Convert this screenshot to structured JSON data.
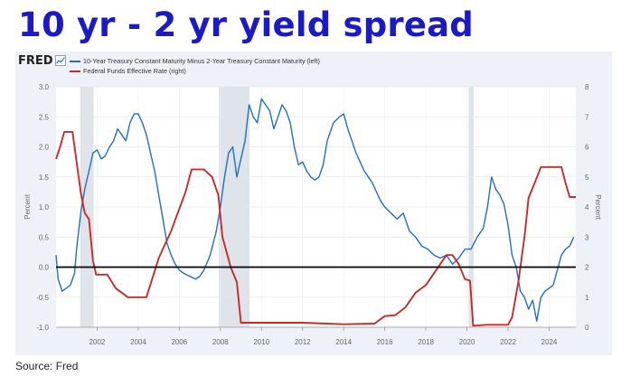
{
  "slide": {
    "title": "10 yr - 2 yr yield spread",
    "source": "Source: Fred"
  },
  "brand": {
    "logo_text": "FRED",
    "accent": "#1a1acc"
  },
  "chart_data": {
    "type": "line",
    "title": "",
    "xlabel": "",
    "ylabel": "Percent",
    "ylabel_right": "Percent",
    "xlim": [
      2000.0,
      2025.3
    ],
    "ylim": [
      -1.0,
      3.0
    ],
    "ylim_right": [
      0,
      8
    ],
    "x_ticks": [
      "2002",
      "2004",
      "2006",
      "2008",
      "2010",
      "2012",
      "2014",
      "2016",
      "2018",
      "2020",
      "2022",
      "2024"
    ],
    "y_ticks": [
      "3.0",
      "2.5",
      "2.0",
      "1.5",
      "1.0",
      "0.5",
      "0.0",
      "-0.5",
      "-1.0"
    ],
    "y_ticks_right": [
      "8",
      "7",
      "6",
      "5",
      "4",
      "3",
      "2",
      "1",
      "0"
    ],
    "grid": true,
    "legend_position": "top-left",
    "zero_line": 0.0,
    "recessions": [
      [
        2001.17,
        2001.83
      ],
      [
        2007.92,
        2009.42
      ],
      [
        2020.08,
        2020.33
      ]
    ],
    "series": [
      {
        "name": "10-Year Treasury Constant Maturity Minus 2-Year Treasury Constant Maturity (left)",
        "axis": "left",
        "color": "#1f6fc7",
        "x": [
          2000.0,
          2000.1,
          2000.3,
          2000.5,
          2000.7,
          2000.9,
          2001.0,
          2001.2,
          2001.4,
          2001.6,
          2001.8,
          2002.0,
          2002.2,
          2002.4,
          2002.6,
          2002.8,
          2003.0,
          2003.2,
          2003.4,
          2003.6,
          2003.8,
          2004.0,
          2004.2,
          2004.4,
          2004.6,
          2004.8,
          2005.0,
          2005.2,
          2005.4,
          2005.6,
          2005.8,
          2006.0,
          2006.2,
          2006.5,
          2006.8,
          2007.0,
          2007.2,
          2007.5,
          2007.8,
          2008.0,
          2008.2,
          2008.4,
          2008.6,
          2008.8,
          2009.0,
          2009.2,
          2009.4,
          2009.6,
          2009.8,
          2010.0,
          2010.2,
          2010.4,
          2010.6,
          2010.8,
          2011.0,
          2011.2,
          2011.4,
          2011.6,
          2011.8,
          2012.0,
          2012.2,
          2012.4,
          2012.6,
          2012.8,
          2013.0,
          2013.2,
          2013.5,
          2013.8,
          2014.0,
          2014.2,
          2014.4,
          2014.6,
          2014.8,
          2015.0,
          2015.2,
          2015.4,
          2015.6,
          2015.8,
          2016.0,
          2016.3,
          2016.6,
          2016.9,
          2017.2,
          2017.5,
          2017.8,
          2018.1,
          2018.4,
          2018.7,
          2019.0,
          2019.3,
          2019.6,
          2019.9,
          2020.2,
          2020.5,
          2020.8,
          2021.0,
          2021.2,
          2021.4,
          2021.6,
          2021.8,
          2022.0,
          2022.2,
          2022.4,
          2022.6,
          2022.8,
          2023.0,
          2023.2,
          2023.4,
          2023.6,
          2023.8,
          2024.0,
          2024.2,
          2024.4,
          2024.6,
          2024.8,
          2025.0,
          2025.2
        ],
        "y": [
          0.2,
          -0.2,
          -0.4,
          -0.35,
          -0.3,
          -0.1,
          0.3,
          0.9,
          1.3,
          1.6,
          1.9,
          1.95,
          1.8,
          1.85,
          2.0,
          2.1,
          2.3,
          2.2,
          2.1,
          2.4,
          2.55,
          2.55,
          2.4,
          2.2,
          1.9,
          1.6,
          1.2,
          0.8,
          0.4,
          0.2,
          0.05,
          -0.05,
          -0.1,
          -0.15,
          -0.2,
          -0.15,
          -0.05,
          0.2,
          0.6,
          1.0,
          1.5,
          1.9,
          2.0,
          1.5,
          1.8,
          2.1,
          2.7,
          2.5,
          2.4,
          2.8,
          2.7,
          2.6,
          2.3,
          2.5,
          2.7,
          2.6,
          2.4,
          2.0,
          1.7,
          1.75,
          1.6,
          1.5,
          1.45,
          1.5,
          1.7,
          2.1,
          2.4,
          2.5,
          2.55,
          2.3,
          2.1,
          1.9,
          1.75,
          1.6,
          1.5,
          1.4,
          1.25,
          1.1,
          1.0,
          0.9,
          0.8,
          0.9,
          0.6,
          0.5,
          0.35,
          0.3,
          0.2,
          0.15,
          0.2,
          0.05,
          0.15,
          0.3,
          0.3,
          0.5,
          0.65,
          1.0,
          1.5,
          1.3,
          1.2,
          1.05,
          0.7,
          0.2,
          0.0,
          -0.4,
          -0.5,
          -0.7,
          -0.55,
          -0.9,
          -0.5,
          -0.4,
          -0.35,
          -0.3,
          -0.05,
          0.2,
          0.3,
          0.35,
          0.5
        ]
      },
      {
        "name": "Federal Funds Effective Rate (right)",
        "axis": "right",
        "color": "#cc2929",
        "x": [
          2000.0,
          2000.2,
          2000.4,
          2000.6,
          2000.8,
          2001.0,
          2001.2,
          2001.4,
          2001.6,
          2001.8,
          2001.95,
          2002.5,
          2002.9,
          2003.5,
          2004.4,
          2005.0,
          2005.6,
          2006.3,
          2006.6,
          2007.2,
          2007.6,
          2007.9,
          2008.1,
          2008.5,
          2008.8,
          2009.0,
          2010.0,
          2012.0,
          2014.0,
          2015.5,
          2016.0,
          2016.5,
          2017.0,
          2017.5,
          2018.0,
          2018.5,
          2019.0,
          2019.3,
          2019.6,
          2019.9,
          2020.15,
          2020.3,
          2021.0,
          2022.0,
          2022.2,
          2022.5,
          2022.8,
          2023.0,
          2023.3,
          2023.6,
          2024.0,
          2024.6,
          2024.8,
          2025.0,
          2025.3
        ],
        "y": [
          5.6,
          6.0,
          6.5,
          6.5,
          6.5,
          5.5,
          4.5,
          3.8,
          3.6,
          2.2,
          1.75,
          1.75,
          1.3,
          1.0,
          1.0,
          2.3,
          3.2,
          4.5,
          5.25,
          5.25,
          5.0,
          4.4,
          3.0,
          2.0,
          1.5,
          0.15,
          0.15,
          0.15,
          0.1,
          0.12,
          0.37,
          0.4,
          0.66,
          1.15,
          1.4,
          1.9,
          2.4,
          2.4,
          2.1,
          1.6,
          1.55,
          0.05,
          0.08,
          0.08,
          0.33,
          1.5,
          3.0,
          4.3,
          4.8,
          5.33,
          5.33,
          5.33,
          4.8,
          4.33,
          4.33
        ]
      }
    ]
  }
}
